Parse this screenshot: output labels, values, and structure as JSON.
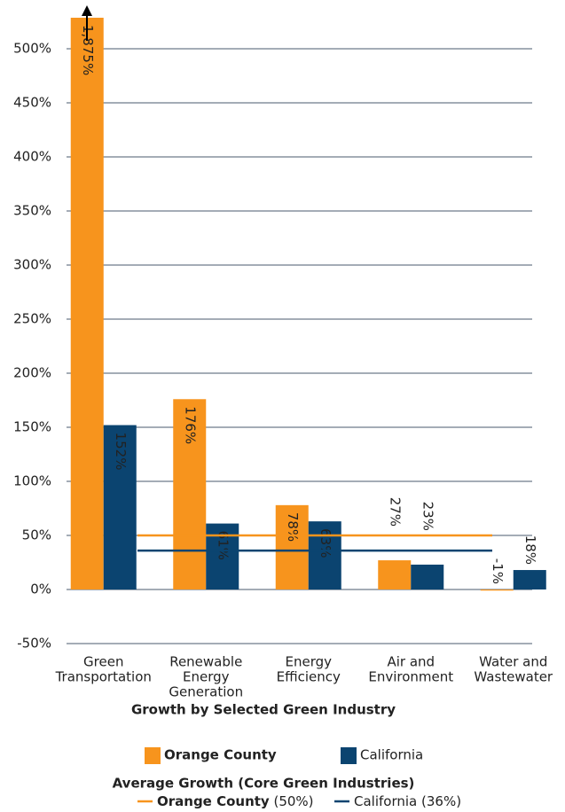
{
  "chart_data": {
    "type": "bar",
    "categories": [
      [
        "Green",
        "Transportation"
      ],
      [
        "Renewable",
        "Energy",
        "Generation"
      ],
      [
        "Energy",
        "Efficiency"
      ],
      [
        "Air and",
        "Environment"
      ],
      [
        "Water and",
        "Wastewater"
      ]
    ],
    "series": [
      {
        "name": "Orange County",
        "color": "#f7941d",
        "values": [
          1875,
          176,
          78,
          27,
          -1
        ],
        "value_labels": [
          "1,875%",
          "176%",
          "78%",
          "27%",
          "-1%"
        ],
        "average": 50,
        "average_label": "(50%)"
      },
      {
        "name": "California",
        "color": "#0b4470",
        "values": [
          152,
          61,
          63,
          23,
          18
        ],
        "value_labels": [
          "152%",
          "61%",
          "63%",
          "23%",
          "18%"
        ],
        "average": 36,
        "average_label": "(36%)"
      }
    ],
    "legend_title": "Growth by Selected Green Industry",
    "average_legend_title": "Average Growth (Core Green Industries)",
    "ylim": [
      -50,
      530
    ],
    "yticks": [
      {
        "value": -50,
        "label": "-50%"
      },
      {
        "value": 0,
        "label": "0%"
      },
      {
        "value": 50,
        "label": "50%"
      },
      {
        "value": 100,
        "label": "100%"
      },
      {
        "value": 150,
        "label": "150%"
      },
      {
        "value": 200,
        "label": "200%"
      },
      {
        "value": 250,
        "label": "250%"
      },
      {
        "value": 300,
        "label": "300%"
      },
      {
        "value": 350,
        "label": "350%"
      },
      {
        "value": 400,
        "label": "400%"
      },
      {
        "value": 450,
        "label": "450%"
      },
      {
        "value": 500,
        "label": "500%"
      }
    ],
    "grid": true
  }
}
